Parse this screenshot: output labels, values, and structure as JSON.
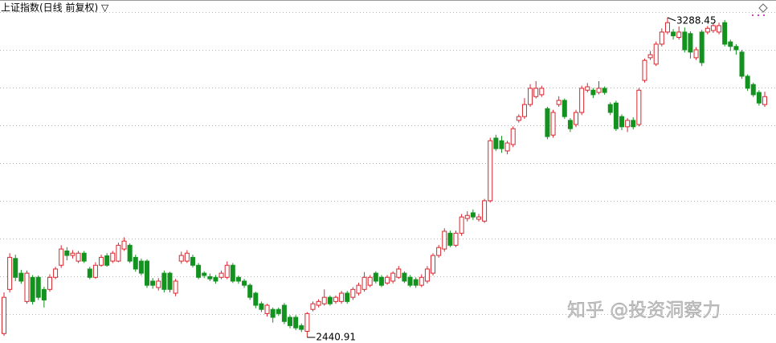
{
  "chart_data": {
    "type": "candlestick",
    "title": "上证指数(日线 前复权) ▽",
    "open": [
      2451,
      2568,
      2650,
      2611,
      2536,
      2600,
      2600,
      2568,
      2568,
      2600,
      2632,
      2670,
      2658,
      2643,
      2664,
      2622,
      2600,
      2632,
      2657,
      2643,
      2643,
      2675,
      2685,
      2653,
      2643,
      2643,
      2590,
      2573,
      2611,
      2611,
      2558,
      2643,
      2643,
      2653,
      2632,
      2611,
      2602,
      2600,
      2600,
      2600,
      2632,
      2600,
      2590,
      2579,
      2558,
      2530,
      2504,
      2515,
      2515,
      2526,
      2494,
      2494,
      2472,
      2457,
      2515,
      2526,
      2530,
      2547,
      2536,
      2536,
      2558,
      2547,
      2558,
      2568,
      2579,
      2611,
      2600,
      2585,
      2590,
      2600,
      2611,
      2600,
      2594,
      2579,
      2590,
      2611,
      2658,
      2675,
      2717,
      2685,
      2717,
      2756,
      2771,
      2754,
      2749,
      2803,
      2969,
      2962,
      2935,
      2952,
      3016,
      3026,
      3058,
      3079,
      3084,
      3047,
      2977,
      3058,
      3069,
      3016,
      3005,
      3037,
      3096,
      3096,
      3090,
      3101,
      3058,
      3062,
      3026,
      2999,
      3016,
      3005,
      3122,
      3182,
      3165,
      3218,
      3250,
      3250,
      3236,
      3250,
      3246,
      3182,
      3250,
      3250,
      3254,
      3250,
      3275,
      3224,
      3212,
      3197,
      3133,
      3111,
      3090,
      3058
    ],
    "high": [
      2560,
      2664,
      2660,
      2620,
      2618,
      2606,
      2605,
      2575,
      2608,
      2628,
      2685,
      2680,
      2672,
      2670,
      2670,
      2628,
      2640,
      2660,
      2664,
      2670,
      2692,
      2706,
      2690,
      2660,
      2650,
      2648,
      2598,
      2598,
      2618,
      2615,
      2596,
      2668,
      2672,
      2660,
      2638,
      2616,
      2610,
      2606,
      2618,
      2642,
      2638,
      2605,
      2596,
      2584,
      2562,
      2536,
      2530,
      2520,
      2520,
      2532,
      2500,
      2500,
      2478,
      2508,
      2536,
      2542,
      2568,
      2552,
      2552,
      2564,
      2564,
      2574,
      2586,
      2614,
      2606,
      2616,
      2606,
      2606,
      2616,
      2630,
      2616,
      2606,
      2600,
      2608,
      2630,
      2664,
      2686,
      2730,
      2724,
      2724,
      2768,
      2775,
      2780,
      2768,
      2808,
      2970,
      2978,
      2975,
      2962,
      3000,
      3032,
      3075,
      3112,
      3120,
      3108,
      3052,
      3044,
      3080,
      3074,
      3022,
      3044,
      3108,
      3115,
      3102,
      3120,
      3106,
      3064,
      3068,
      3032,
      3022,
      3024,
      3102,
      3180,
      3200,
      3225,
      3260,
      3288.45,
      3258,
      3265,
      3262,
      3252,
      3210,
      3256,
      3266,
      3272,
      3275,
      3282,
      3230,
      3218,
      3203,
      3138,
      3116,
      3096,
      3092
    ],
    "low": [
      2445,
      2560,
      2590,
      2583,
      2530,
      2528,
      2540,
      2520,
      2562,
      2595,
      2625,
      2645,
      2650,
      2638,
      2638,
      2595,
      2596,
      2628,
      2628,
      2638,
      2640,
      2670,
      2638,
      2615,
      2605,
      2572,
      2570,
      2565,
      2560,
      2560,
      2550,
      2636,
      2638,
      2626,
      2595,
      2598,
      2590,
      2583,
      2595,
      2595,
      2585,
      2583,
      2572,
      2540,
      2518,
      2508,
      2496,
      2480,
      2498,
      2476,
      2465,
      2460,
      2455,
      2440.91,
      2510,
      2520,
      2525,
      2525,
      2530,
      2530,
      2530,
      2540,
      2552,
      2562,
      2574,
      2584,
      2574,
      2580,
      2584,
      2596,
      2585,
      2574,
      2572,
      2574,
      2584,
      2605,
      2652,
      2668,
      2680,
      2680,
      2710,
      2748,
      2752,
      2748,
      2744,
      2798,
      2935,
      2930,
      2926,
      2945,
      3010,
      3020,
      3052,
      3074,
      3078,
      2966,
      2970,
      3052,
      3020,
      2985,
      2998,
      3030,
      3090,
      3075,
      3085,
      3084,
      3030,
      2988,
      2990,
      2985,
      2992,
      3000,
      3116,
      3176,
      3160,
      3212,
      3244,
      3230,
      3230,
      3196,
      3180,
      3176,
      3160,
      3244,
      3248,
      3244,
      3212,
      3200,
      3190,
      3126,
      3094,
      3078,
      3055,
      3052
    ],
    "close": [
      2547,
      2653,
      2600,
      2590,
      2611,
      2536,
      2547,
      2540,
      2600,
      2622,
      2675,
      2658,
      2664,
      2664,
      2643,
      2600,
      2632,
      2653,
      2632,
      2664,
      2685,
      2696,
      2643,
      2622,
      2611,
      2579,
      2579,
      2590,
      2568,
      2568,
      2590,
      2658,
      2664,
      2632,
      2600,
      2605,
      2596,
      2590,
      2611,
      2632,
      2590,
      2590,
      2579,
      2547,
      2526,
      2515,
      2526,
      2494,
      2504,
      2483,
      2472,
      2466,
      2462,
      2504,
      2530,
      2536,
      2547,
      2530,
      2547,
      2558,
      2536,
      2568,
      2579,
      2600,
      2600,
      2590,
      2579,
      2600,
      2611,
      2622,
      2590,
      2579,
      2579,
      2600,
      2622,
      2658,
      2679,
      2722,
      2685,
      2717,
      2760,
      2764,
      2760,
      2760,
      2803,
      2962,
      2941,
      2941,
      2956,
      2994,
      3026,
      3058,
      3101,
      3101,
      3101,
      2973,
      3037,
      3069,
      3026,
      2994,
      3037,
      3101,
      3105,
      3084,
      3101,
      3090,
      3037,
      2994,
      2999,
      3016,
      2999,
      3096,
      3175,
      3190,
      3218,
      3250,
      3275,
      3240,
      3250,
      3203,
      3197,
      3203,
      3169,
      3260,
      3267,
      3267,
      3218,
      3212,
      3203,
      3133,
      3101,
      3084,
      3062,
      3079
    ],
    "up_color": "#d8262e",
    "down_color": "#13921f",
    "ylim": [
      2426,
      3335
    ]
  },
  "watermark": "知乎 @投资洞察力"
}
